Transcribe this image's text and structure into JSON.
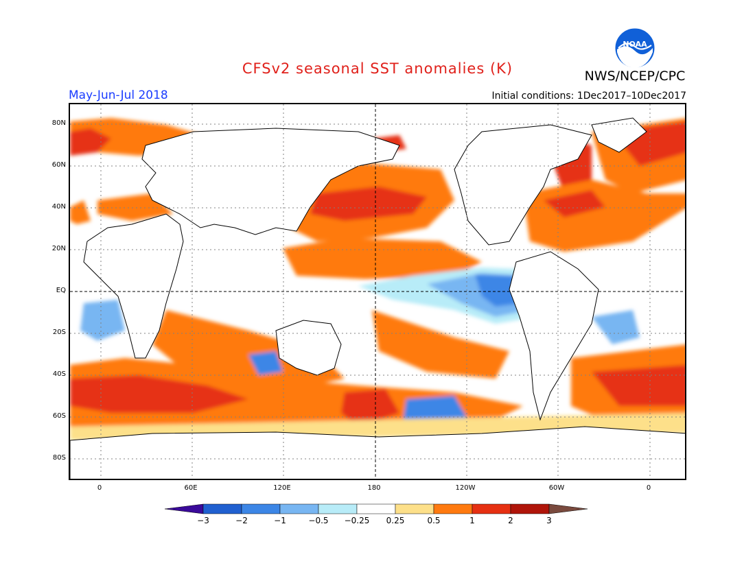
{
  "header": {
    "title": "CFSv2 seasonal SST anomalies (K)",
    "agency": "NWS/NCEP/CPC",
    "season": "May-Jun-Jul 2018",
    "initial_conditions": "Initial conditions: 1Dec2017–10Dec2017",
    "logo_text": "NOAA"
  },
  "map": {
    "lat_labels": [
      "80N",
      "60N",
      "40N",
      "20N",
      "EQ",
      "20S",
      "40S",
      "60S",
      "80S"
    ],
    "lon_labels": [
      "0",
      "60E",
      "120E",
      "180",
      "120W",
      "60W",
      "0"
    ]
  },
  "colorbar": {
    "labels": [
      "−3",
      "−2",
      "−1",
      "−0.5",
      "−0.25",
      "0.25",
      "0.5",
      "1",
      "2",
      "3"
    ],
    "colors": [
      "#3a0a9a",
      "#2060d0",
      "#3c86e6",
      "#78b6f2",
      "#b8ecf8",
      "#ffffff",
      "#fde08a",
      "#ff7a10",
      "#e63012",
      "#b0150a",
      "#7a4a3e"
    ]
  },
  "colors": {
    "title": "#e0201a",
    "season": "#1a3cff"
  }
}
